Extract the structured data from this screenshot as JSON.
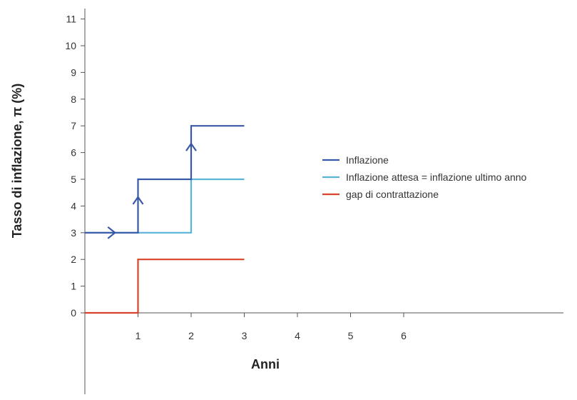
{
  "chart_data": {
    "type": "line",
    "step": true,
    "xlabel": "Anni",
    "ylabel": "Tasso di inflazione, π (%)",
    "xlim": [
      0,
      9
    ],
    "ylim": [
      0,
      11
    ],
    "x_ticks": [
      "1",
      "2",
      "3",
      "4",
      "5",
      "6"
    ],
    "y_ticks": [
      "0",
      "1",
      "2",
      "3",
      "4",
      "5",
      "6",
      "7",
      "8",
      "9",
      "10",
      "11"
    ],
    "grid": false,
    "legend_position": "right",
    "series": [
      {
        "name": "Inflazione",
        "color": "#3a58a8",
        "points": [
          [
            0,
            3
          ],
          [
            1,
            3
          ],
          [
            1,
            5
          ],
          [
            2,
            5
          ],
          [
            2,
            7
          ],
          [
            3,
            7
          ]
        ],
        "arrows": [
          {
            "x": 0.5,
            "y": 3,
            "dir": "right"
          },
          {
            "x": 1,
            "y": 4.2,
            "dir": "up"
          },
          {
            "x": 2,
            "y": 6.2,
            "dir": "up"
          }
        ]
      },
      {
        "name": "Inflazione attesa = inflazione ultimo anno",
        "color": "#5bb3d9",
        "points": [
          [
            0,
            3
          ],
          [
            2,
            3
          ],
          [
            2,
            5
          ],
          [
            3,
            5
          ]
        ]
      },
      {
        "name": "gap di contrattazione",
        "color": "#d9432b",
        "points": [
          [
            0,
            0
          ],
          [
            1,
            0
          ],
          [
            1,
            2
          ],
          [
            3,
            2
          ]
        ]
      }
    ]
  }
}
